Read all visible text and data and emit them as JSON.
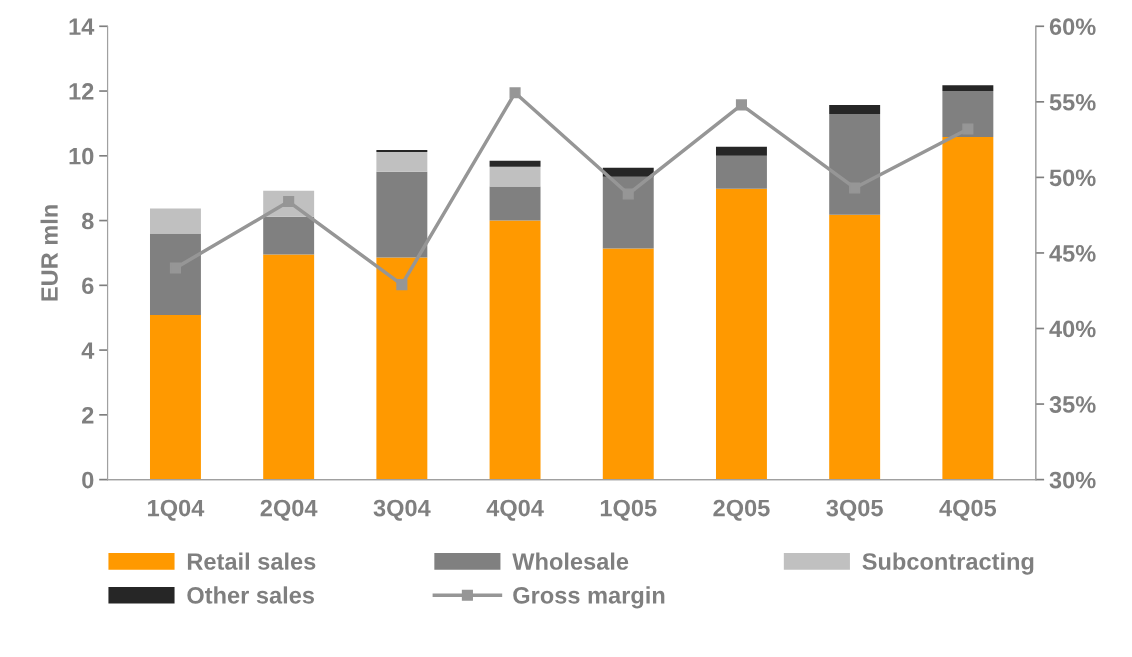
{
  "chart_data": {
    "type": "bar",
    "stacked": true,
    "ylabel": "EUR mln",
    "categories": [
      "1Q04",
      "2Q04",
      "3Q04",
      "4Q04",
      "1Q05",
      "2Q05",
      "3Q05",
      "4Q05"
    ],
    "series": [
      {
        "name": "Retail sales",
        "color": "#ff9900",
        "values": [
          5.08,
          6.95,
          6.86,
          8.0,
          7.14,
          8.98,
          8.18,
          10.58
        ]
      },
      {
        "name": "Wholesale",
        "color": "#808080",
        "values": [
          2.52,
          1.17,
          2.65,
          1.05,
          2.21,
          1.02,
          3.11,
          1.42
        ]
      },
      {
        "name": "Subcontracting",
        "color": "#c0c0c0",
        "values": [
          0.77,
          0.8,
          0.61,
          0.61,
          0,
          0,
          0,
          0
        ]
      },
      {
        "name": "Other sales",
        "color": "#262626",
        "values": [
          0,
          0,
          0.06,
          0.19,
          0.28,
          0.28,
          0.28,
          0.18
        ]
      },
      {
        "name": "Gross margin",
        "type": "line",
        "axis": "y2",
        "color": "#969696",
        "marker": "square",
        "values": [
          44.0,
          48.4,
          42.9,
          55.6,
          48.9,
          54.8,
          49.3,
          53.2
        ]
      }
    ],
    "ylim": [
      0,
      14
    ],
    "yticks": [
      0,
      2,
      4,
      6,
      8,
      10,
      12,
      14
    ],
    "y2lim": [
      30,
      60
    ],
    "y2ticks": [
      {
        "value": 30,
        "label": "30%"
      },
      {
        "value": 35,
        "label": "35%"
      },
      {
        "value": 40,
        "label": "40%"
      },
      {
        "value": 45,
        "label": "45%"
      },
      {
        "value": 50,
        "label": "50%"
      },
      {
        "value": 55,
        "label": "55%"
      },
      {
        "value": 60,
        "label": "60%"
      }
    ],
    "grid": false,
    "legend": "bottom"
  }
}
